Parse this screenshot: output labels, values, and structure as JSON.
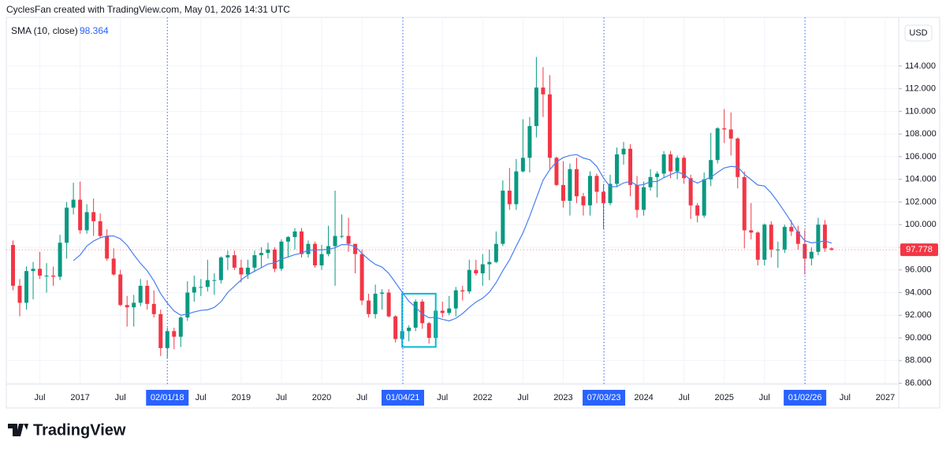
{
  "header": "CyclesFan created with TradingView.com, May 01, 2026 14:31 UTC",
  "footer_logo": "TradingView",
  "currency": "USD",
  "chart_data": {
    "type": "candlestick",
    "up_color": "#089981",
    "down_color": "#f23645",
    "x": [
      "2016-03",
      "2016-04",
      "2016-05",
      "2016-06",
      "2016-07",
      "2016-08",
      "2016-09",
      "2016-10",
      "2016-11",
      "2016-12",
      "2017-01",
      "2017-02",
      "2017-03",
      "2017-04",
      "2017-05",
      "2017-06",
      "2017-07",
      "2017-08",
      "2017-09",
      "2017-10",
      "2017-11",
      "2017-12",
      "2018-01",
      "2018-02",
      "2018-03",
      "2018-04",
      "2018-05",
      "2018-06",
      "2018-07",
      "2018-08",
      "2018-09",
      "2018-10",
      "2018-11",
      "2018-12",
      "2019-01",
      "2019-02",
      "2019-03",
      "2019-04",
      "2019-05",
      "2019-06",
      "2019-07",
      "2019-08",
      "2019-09",
      "2019-10",
      "2019-11",
      "2019-12",
      "2020-01",
      "2020-02",
      "2020-03",
      "2020-04",
      "2020-05",
      "2020-06",
      "2020-07",
      "2020-08",
      "2020-09",
      "2020-10",
      "2020-11",
      "2020-12",
      "2021-01",
      "2021-02",
      "2021-03",
      "2021-04",
      "2021-05",
      "2021-06",
      "2021-07",
      "2021-08",
      "2021-09",
      "2021-10",
      "2021-11",
      "2021-12",
      "2022-01",
      "2022-02",
      "2022-03",
      "2022-04",
      "2022-05",
      "2022-06",
      "2022-07",
      "2022-08",
      "2022-09",
      "2022-10",
      "2022-11",
      "2022-12",
      "2023-01",
      "2023-02",
      "2023-03",
      "2023-04",
      "2023-05",
      "2023-06",
      "2023-07",
      "2023-08",
      "2023-09",
      "2023-10",
      "2023-11",
      "2023-12",
      "2024-01",
      "2024-02",
      "2024-03",
      "2024-04",
      "2024-05",
      "2024-06",
      "2024-07",
      "2024-08",
      "2024-09",
      "2024-10",
      "2024-11",
      "2024-12",
      "2025-01",
      "2025-02",
      "2025-03",
      "2025-04",
      "2025-05",
      "2025-06",
      "2025-07",
      "2025-08",
      "2025-09",
      "2025-10",
      "2025-11",
      "2025-12",
      "2026-01",
      "2026-02",
      "2026-03",
      "2026-04",
      "2026-05"
    ],
    "open": [
      98.2,
      94.6,
      93.1,
      95.9,
      96.1,
      95.5,
      95.5,
      95.4,
      98.4,
      101.5,
      102.2,
      99.5,
      101.1,
      100.3,
      99.0,
      97.0,
      95.6,
      92.9,
      92.7,
      93.1,
      94.6,
      93.0,
      92.1,
      89.1,
      90.6,
      90.1,
      91.8,
      94.0,
      94.5,
      94.5,
      95.1,
      95.1,
      97.1,
      97.3,
      96.2,
      95.6,
      96.2,
      97.3,
      97.5,
      97.8,
      96.1,
      98.5,
      98.9,
      99.4,
      97.4,
      98.3,
      96.4,
      97.4,
      98.1,
      99.0,
      99.0,
      98.3,
      97.4,
      93.3,
      92.1,
      93.9,
      94.0,
      91.9,
      89.9,
      90.6,
      90.9,
      93.2,
      91.3,
      90.0,
      92.4,
      92.2,
      92.6,
      94.2,
      94.1,
      96.0,
      95.7,
      96.5,
      96.7,
      98.3,
      103.0,
      101.8,
      104.7,
      105.9,
      108.7,
      112.1,
      111.5,
      105.9,
      103.5,
      102.1,
      104.9,
      102.5,
      101.7,
      104.3,
      102.9,
      101.9,
      103.6,
      106.2,
      106.7,
      103.5,
      101.3,
      103.3,
      104.2,
      104.5,
      106.2,
      104.7,
      105.9,
      104.1,
      101.7,
      100.8,
      104.0,
      105.7,
      108.5,
      108.4,
      107.6,
      104.2,
      99.5,
      99.3,
      96.9,
      100.0,
      97.8,
      97.8,
      99.8,
      99.4,
      98.3,
      97.0,
      97.6,
      100.0,
      97.9
    ],
    "high": [
      98.6,
      95.2,
      96.3,
      96.7,
      97.6,
      96.6,
      96.3,
      99.1,
      102.0,
      103.7,
      103.8,
      101.8,
      102.3,
      101.0,
      99.6,
      97.9,
      96.0,
      93.7,
      93.8,
      95.2,
      95.1,
      94.2,
      92.5,
      90.9,
      90.9,
      91.9,
      95.0,
      95.5,
      95.2,
      96.9,
      95.7,
      97.2,
      97.7,
      97.7,
      96.9,
      96.9,
      97.7,
      98.0,
      98.4,
      98.0,
      98.7,
      99.0,
      99.7,
      99.7,
      98.6,
      98.5,
      98.2,
      99.9,
      103.0,
      100.9,
      100.6,
      98.3,
      97.8,
      93.9,
      94.7,
      94.3,
      94.3,
      92.0,
      91.0,
      91.1,
      93.4,
      93.4,
      91.4,
      92.4,
      93.2,
      93.7,
      94.5,
      94.6,
      96.9,
      96.9,
      97.4,
      97.8,
      99.4,
      103.9,
      105.0,
      105.8,
      109.3,
      109.5,
      114.8,
      113.9,
      113.2,
      106.0,
      105.6,
      105.4,
      105.9,
      102.8,
      104.7,
      104.5,
      103.6,
      104.4,
      106.8,
      107.3,
      107.1,
      104.3,
      103.8,
      104.9,
      104.7,
      106.5,
      106.5,
      106.1,
      106.1,
      104.4,
      101.9,
      104.6,
      108.1,
      108.6,
      110.2,
      109.9,
      107.7,
      104.7,
      101.9,
      99.4,
      100.1,
      100.3,
      98.5,
      100.0,
      100.4,
      99.9,
      99.5,
      98.0,
      100.6,
      100.4,
      98.0
    ],
    "low": [
      94.2,
      91.9,
      92.5,
      93.4,
      95.2,
      94.0,
      94.6,
      95.1,
      97.0,
      100.9,
      99.2,
      99.2,
      99.0,
      98.8,
      96.8,
      95.5,
      92.8,
      91.0,
      91.0,
      92.8,
      92.5,
      91.8,
      88.4,
      88.2,
      89.0,
      89.2,
      91.5,
      93.2,
      93.7,
      94.1,
      93.8,
      94.8,
      96.0,
      96.0,
      94.9,
      95.2,
      95.8,
      96.2,
      97.0,
      95.8,
      95.9,
      97.1,
      97.8,
      97.1,
      97.1,
      96.2,
      96.0,
      97.2,
      94.6,
      98.8,
      97.6,
      95.7,
      92.9,
      91.8,
      91.7,
      92.5,
      91.8,
      89.6,
      89.2,
      89.7,
      90.6,
      90.8,
      89.5,
      89.5,
      91.8,
      92.0,
      91.9,
      93.3,
      93.9,
      95.5,
      94.6,
      95.1,
      96.6,
      98.1,
      101.3,
      101.3,
      104.6,
      104.6,
      107.7,
      109.5,
      104.9,
      103.4,
      101.5,
      100.8,
      101.9,
      100.8,
      100.8,
      101.9,
      99.6,
      101.7,
      103.3,
      105.3,
      102.5,
      100.6,
      100.8,
      103.0,
      102.4,
      104.1,
      104.1,
      104.0,
      103.6,
      100.5,
      100.2,
      100.6,
      103.4,
      105.4,
      107.2,
      106.1,
      103.2,
      97.9,
      98.7,
      96.4,
      96.4,
      97.1,
      96.2,
      97.5,
      99.0,
      97.8,
      95.6,
      96.4,
      97.3,
      97.6,
      97.7
    ],
    "close": [
      94.6,
      93.1,
      95.9,
      96.1,
      95.5,
      95.5,
      95.4,
      98.4,
      101.5,
      102.2,
      99.5,
      101.1,
      100.3,
      99.0,
      97.0,
      95.6,
      92.9,
      92.7,
      93.1,
      94.6,
      93.0,
      92.1,
      89.1,
      90.6,
      90.1,
      91.8,
      94.0,
      94.5,
      94.5,
      95.1,
      95.1,
      97.1,
      97.3,
      96.2,
      95.6,
      96.2,
      97.3,
      97.5,
      97.8,
      96.1,
      98.5,
      98.9,
      99.4,
      97.4,
      98.3,
      96.4,
      97.4,
      98.1,
      99.0,
      99.0,
      98.3,
      97.4,
      93.3,
      92.1,
      93.9,
      94.0,
      91.9,
      89.9,
      90.6,
      90.9,
      93.2,
      91.3,
      90.0,
      92.4,
      92.2,
      92.6,
      94.2,
      94.1,
      96.0,
      95.7,
      96.5,
      96.7,
      98.3,
      103.0,
      101.8,
      104.7,
      105.9,
      108.7,
      112.1,
      111.5,
      105.9,
      103.5,
      102.1,
      104.9,
      102.5,
      101.7,
      104.3,
      102.9,
      101.9,
      103.6,
      106.2,
      106.7,
      103.5,
      101.3,
      103.3,
      104.2,
      104.5,
      106.2,
      104.7,
      105.9,
      104.1,
      101.7,
      100.8,
      104.0,
      105.7,
      108.5,
      108.4,
      107.6,
      104.2,
      99.5,
      99.3,
      96.9,
      100.0,
      97.8,
      97.8,
      99.8,
      99.4,
      98.3,
      97.0,
      97.6,
      100.0,
      97.9,
      97.778
    ],
    "indicator": {
      "name": "SMA (10, close)",
      "color": "#4a7ef0",
      "label_color": "#2962ff",
      "values": [
        null,
        null,
        null,
        null,
        null,
        null,
        null,
        null,
        null,
        96.82,
        97.31,
        98.11,
        98.55,
        98.84,
        98.99,
        99.0,
        98.75,
        98.18,
        97.34,
        96.58,
        95.93,
        95.03,
        93.91,
        93.07,
        92.38,
        92.0,
        92.11,
        92.29,
        92.43,
        92.48,
        92.69,
        93.19,
        94.01,
        94.57,
        95.12,
        95.56,
        95.89,
        96.19,
        96.52,
        96.62,
        96.96,
        97.14,
        97.35,
        97.47,
        97.74,
        97.76,
        97.77,
        97.83,
        97.95,
        98.24,
        98.22,
        98.07,
        97.46,
        96.93,
        96.49,
        96.25,
        95.7,
        94.88,
        94.04,
        93.23,
        92.72,
        92.11,
        91.78,
        91.81,
        91.64,
        91.5,
        91.73,
        92.15,
        92.69,
        93.17,
        93.5,
        94.04,
        94.87,
        95.93,
        96.89,
        98.1,
        99.27,
        100.73,
        102.34,
        103.92,
        104.86,
        105.54,
        105.92,
        106.11,
        106.18,
        105.88,
        105.72,
        105.14,
        104.12,
        103.33,
        103.36,
        103.68,
        103.82,
        103.46,
        103.54,
        103.79,
        103.81,
        104.14,
        104.42,
        104.65,
        104.44,
        103.94,
        103.67,
        103.94,
        104.18,
        104.61,
        105.0,
        105.14,
        105.09,
        104.45,
        103.97,
        103.49,
        103.41,
        102.79,
        102.0,
        101.13,
        100.23,
        99.3,
        98.58,
        98.39,
        98.46,
        98.56,
        98.364
      ]
    },
    "xlim": [
      "2016-02",
      "2027-03"
    ],
    "xticks": [
      {
        "value": "2016-07",
        "label": "Jul"
      },
      {
        "value": "2017-01",
        "label": "2017"
      },
      {
        "value": "2017-07",
        "label": "Jul"
      },
      {
        "value": "2018-07",
        "label": "Jul"
      },
      {
        "value": "2019-01",
        "label": "2019"
      },
      {
        "value": "2019-07",
        "label": "Jul"
      },
      {
        "value": "2020-01",
        "label": "2020"
      },
      {
        "value": "2020-07",
        "label": "Jul"
      },
      {
        "value": "2021-07",
        "label": "Jul"
      },
      {
        "value": "2022-01",
        "label": "2022"
      },
      {
        "value": "2022-07",
        "label": "Jul"
      },
      {
        "value": "2023-01",
        "label": "2023"
      },
      {
        "value": "2024-01",
        "label": "2024"
      },
      {
        "value": "2024-07",
        "label": "Jul"
      },
      {
        "value": "2025-01",
        "label": "2025"
      },
      {
        "value": "2025-07",
        "label": "Jul"
      },
      {
        "value": "2026-07",
        "label": "Jul"
      },
      {
        "value": "2027-01",
        "label": "2027"
      }
    ],
    "markers": [
      {
        "value": "2018-02-01",
        "label": "02/01/18"
      },
      {
        "value": "2021-01-04",
        "label": "01/04/21"
      },
      {
        "value": "2023-07-03",
        "label": "07/03/23"
      },
      {
        "value": "2026-01-02",
        "label": "01/02/26"
      }
    ],
    "marker_color": "#2962ff",
    "ylim": [
      85.9,
      118.3
    ],
    "yticks": [
      {
        "value": 86,
        "label": "86.000"
      },
      {
        "value": 88,
        "label": "88.000"
      },
      {
        "value": 90,
        "label": "90.000"
      },
      {
        "value": 92,
        "label": "92.000"
      },
      {
        "value": 94,
        "label": "94.000"
      },
      {
        "value": 96,
        "label": "96.000"
      },
      {
        "value": 98,
        "label": "98.000"
      },
      {
        "value": 100,
        "label": "100.000"
      },
      {
        "value": 102,
        "label": "102.000"
      },
      {
        "value": 104,
        "label": "104.000"
      },
      {
        "value": 106,
        "label": "106.000"
      },
      {
        "value": 108,
        "label": "108.000"
      },
      {
        "value": 110,
        "label": "110.000"
      },
      {
        "value": 112,
        "label": "112.000"
      },
      {
        "value": 114,
        "label": "114.000"
      }
    ],
    "grid": true,
    "box": {
      "x": [
        "2021-01",
        "2021-06"
      ],
      "y": [
        89.2,
        93.9
      ],
      "color": "#00bcd4"
    }
  }
}
